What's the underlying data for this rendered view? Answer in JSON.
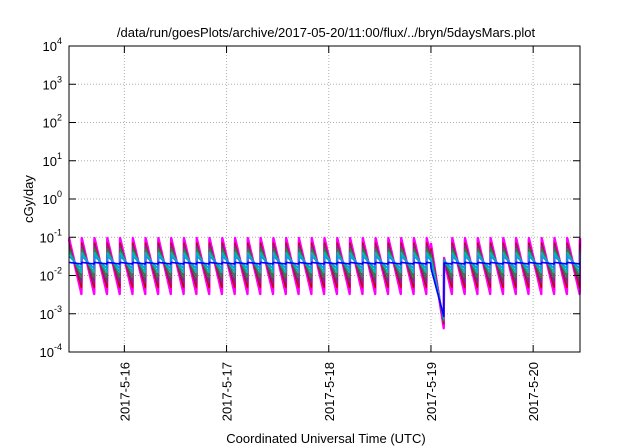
{
  "chart_data": {
    "type": "line",
    "title": "/data/run/goesPlots/archive/2017-05-20/11:00/flux/../bryn/5daysMars.plot",
    "xlabel": "Coordinated Universal Time (UTC)",
    "ylabel": "cGy/day",
    "y_scale": "log",
    "ylim": [
      0.0001,
      10000
    ],
    "y_ticks": [
      {
        "base": "10",
        "exp": "-4",
        "value": 0.0001
      },
      {
        "base": "10",
        "exp": "-3",
        "value": 0.001
      },
      {
        "base": "10",
        "exp": "-2",
        "value": 0.01
      },
      {
        "base": "10",
        "exp": "-1",
        "value": 0.1
      },
      {
        "base": "10",
        "exp": "0",
        "value": 1
      },
      {
        "base": "10",
        "exp": "1",
        "value": 10
      },
      {
        "base": "10",
        "exp": "2",
        "value": 100
      },
      {
        "base": "10",
        "exp": "3",
        "value": 1000
      },
      {
        "base": "10",
        "exp": "4",
        "value": 10000
      }
    ],
    "xlim": [
      "2017-05-15 11:00",
      "2017-05-20 11:00"
    ],
    "x_ticks": [
      "2017-5-16",
      "2017-5-17",
      "2017-5-18",
      "2017-5-19",
      "2017-5-20"
    ],
    "grid": true,
    "series_colors": [
      "#ff00ff",
      "#ff00ff",
      "#cc0000",
      "#7b2a8a",
      "#3a7a3a",
      "#00b8b8",
      "#00a0e0",
      "#0000ff"
    ],
    "sawtooth": {
      "period_hours": 3,
      "peak": [
        0.095,
        0.085,
        0.07,
        0.06,
        0.05,
        0.04,
        0.032,
        0.022
      ],
      "trough": [
        0.0035,
        0.003,
        0.0045,
        0.006,
        0.0085,
        0.0115,
        0.015,
        0.02
      ],
      "dip_2017_05_19": {
        "min": 0.00042,
        "duration_hours": 3
      }
    }
  }
}
